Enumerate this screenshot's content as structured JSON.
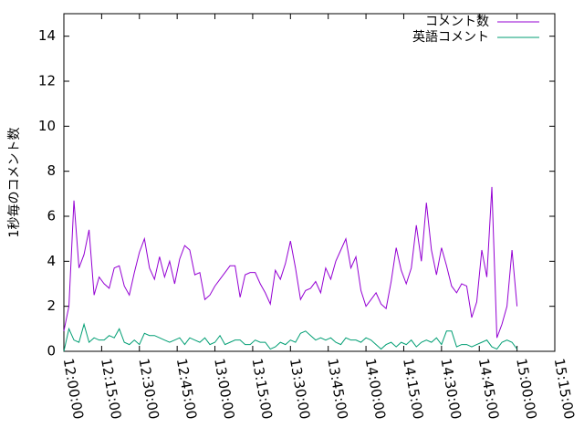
{
  "chart_data": {
    "type": "line",
    "y_label": "1秒毎のコメント数",
    "x": [
      "12:00:00",
      "12:02:00",
      "12:04:00",
      "12:06:00",
      "12:08:00",
      "12:10:00",
      "12:12:00",
      "12:14:00",
      "12:16:00",
      "12:18:00",
      "12:20:00",
      "12:22:00",
      "12:24:00",
      "12:26:00",
      "12:28:00",
      "12:30:00",
      "12:32:00",
      "12:34:00",
      "12:36:00",
      "12:38:00",
      "12:40:00",
      "12:42:00",
      "12:44:00",
      "12:46:00",
      "12:48:00",
      "12:50:00",
      "12:52:00",
      "12:54:00",
      "12:56:00",
      "12:58:00",
      "13:00:00",
      "13:02:00",
      "13:04:00",
      "13:06:00",
      "13:08:00",
      "13:10:00",
      "13:12:00",
      "13:14:00",
      "13:16:00",
      "13:18:00",
      "13:20:00",
      "13:22:00",
      "13:24:00",
      "13:26:00",
      "13:28:00",
      "13:30:00",
      "13:32:00",
      "13:34:00",
      "13:36:00",
      "13:38:00",
      "13:40:00",
      "13:42:00",
      "13:44:00",
      "13:46:00",
      "13:48:00",
      "13:50:00",
      "13:52:00",
      "13:54:00",
      "13:56:00",
      "13:58:00",
      "14:00:00",
      "14:02:00",
      "14:04:00",
      "14:06:00",
      "14:08:00",
      "14:10:00",
      "14:12:00",
      "14:14:00",
      "14:16:00",
      "14:18:00",
      "14:20:00",
      "14:22:00",
      "14:24:00",
      "14:26:00",
      "14:28:00",
      "14:30:00",
      "14:32:00",
      "14:34:00",
      "14:36:00",
      "14:38:00",
      "14:40:00",
      "14:42:00",
      "14:44:00",
      "14:46:00",
      "14:48:00",
      "14:50:00",
      "14:52:00",
      "14:54:00",
      "14:56:00",
      "14:58:00",
      "15:00:00"
    ],
    "series": [
      {
        "name": "コメント数",
        "color": "#9400d3",
        "values": [
          0.9,
          2.0,
          6.7,
          3.7,
          4.3,
          5.4,
          2.5,
          3.3,
          3.0,
          2.8,
          3.7,
          3.8,
          2.9,
          2.5,
          3.5,
          4.4,
          5.0,
          3.7,
          3.2,
          4.2,
          3.3,
          4.0,
          3.0,
          4.1,
          4.7,
          4.5,
          3.4,
          3.5,
          2.3,
          2.5,
          2.9,
          3.2,
          3.5,
          3.8,
          3.8,
          2.4,
          3.4,
          3.5,
          3.5,
          3.0,
          2.6,
          2.1,
          3.6,
          3.2,
          3.9,
          4.9,
          3.7,
          2.3,
          2.7,
          2.8,
          3.1,
          2.6,
          3.7,
          3.2,
          4.0,
          4.5,
          5.0,
          3.7,
          4.2,
          2.7,
          2.0,
          2.3,
          2.6,
          2.1,
          1.9,
          3.1,
          4.6,
          3.6,
          3.0,
          3.7,
          5.6,
          4.0,
          6.6,
          4.5,
          3.4,
          4.6,
          3.8,
          2.9,
          2.6,
          3.0,
          2.9,
          1.5,
          2.2,
          4.5,
          3.3,
          7.3,
          0.6,
          1.2,
          2.0,
          4.5,
          2.0
        ]
      },
      {
        "name": "英語コメント",
        "color": "#009e73",
        "values": [
          0.0,
          1.0,
          0.5,
          0.4,
          1.2,
          0.4,
          0.6,
          0.5,
          0.5,
          0.7,
          0.6,
          1.0,
          0.4,
          0.3,
          0.5,
          0.3,
          0.8,
          0.7,
          0.7,
          0.6,
          0.5,
          0.4,
          0.5,
          0.6,
          0.3,
          0.6,
          0.5,
          0.4,
          0.6,
          0.3,
          0.4,
          0.7,
          0.3,
          0.4,
          0.5,
          0.5,
          0.3,
          0.3,
          0.5,
          0.4,
          0.4,
          0.1,
          0.2,
          0.4,
          0.3,
          0.5,
          0.4,
          0.8,
          0.9,
          0.7,
          0.5,
          0.6,
          0.5,
          0.6,
          0.4,
          0.3,
          0.6,
          0.5,
          0.5,
          0.4,
          0.6,
          0.5,
          0.3,
          0.1,
          0.3,
          0.4,
          0.2,
          0.4,
          0.3,
          0.5,
          0.2,
          0.4,
          0.5,
          0.4,
          0.6,
          0.3,
          0.9,
          0.9,
          0.2,
          0.3,
          0.3,
          0.2,
          0.3,
          0.4,
          0.5,
          0.2,
          0.1,
          0.4,
          0.5,
          0.4,
          0.1
        ]
      }
    ],
    "xlim": [
      "12:00:00",
      "15:15:00"
    ],
    "xticks": [
      "12:00:00",
      "12:15:00",
      "12:30:00",
      "12:45:00",
      "13:00:00",
      "13:15:00",
      "13:30:00",
      "13:45:00",
      "14:00:00",
      "14:15:00",
      "14:30:00",
      "14:45:00",
      "15:00:00",
      "15:15:00"
    ],
    "ylim": [
      0,
      15
    ],
    "yticks": [
      0,
      2,
      4,
      6,
      8,
      10,
      12,
      14
    ],
    "legend": "top-right"
  }
}
